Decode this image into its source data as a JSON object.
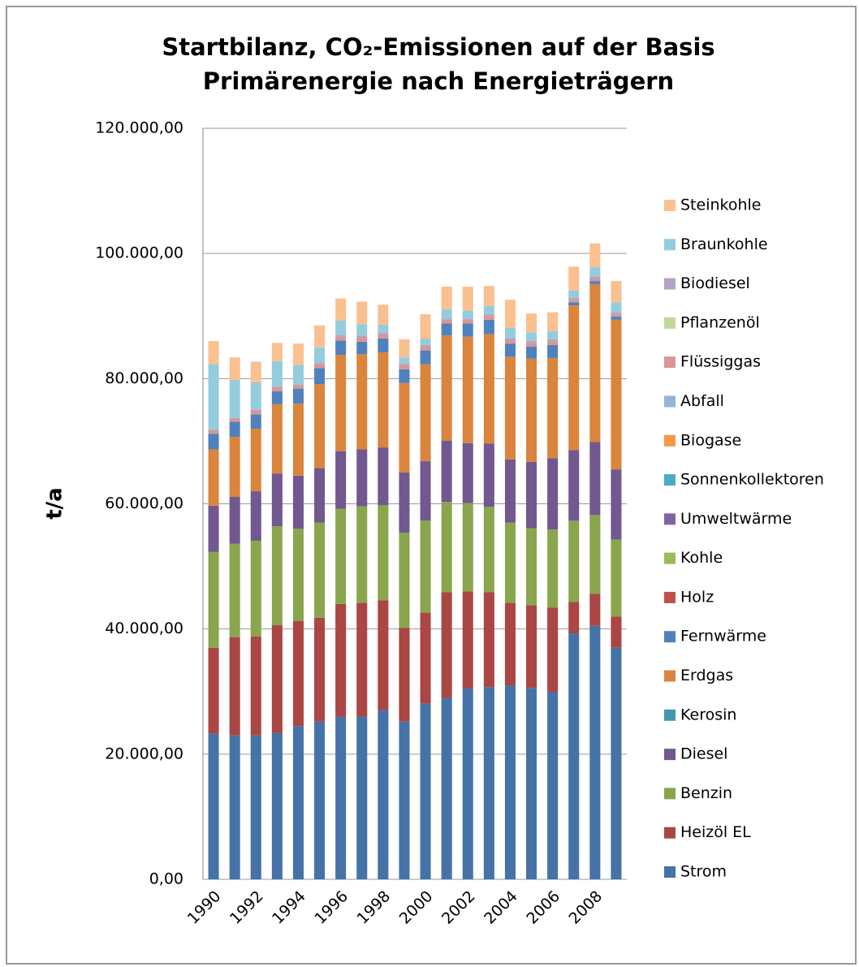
{
  "chart_data": {
    "type": "stacked_bar",
    "title": [
      "Startbilanz, CO₂-Emissionen auf der Basis",
      "Primärenergie nach Energieträgern"
    ],
    "y_label": "t/a",
    "categories": [
      "1990",
      null,
      "1992",
      null,
      "1994",
      null,
      "1996",
      null,
      "1998",
      null,
      "2000",
      null,
      "2002",
      null,
      "2004",
      null,
      "2006",
      null,
      "2008",
      null
    ],
    "ylim": [
      0,
      120000
    ],
    "yticks": [
      {
        "value": 0,
        "label": "0,00"
      },
      {
        "value": 20000,
        "label": "20.000,00"
      },
      {
        "value": 40000,
        "label": "40.000,00"
      },
      {
        "value": 60000,
        "label": "60.000,00"
      },
      {
        "value": 80000,
        "label": "80.000,00"
      },
      {
        "value": 100000,
        "label": "100.000,00"
      },
      {
        "value": 120000,
        "label": "120.000,00"
      }
    ],
    "grid": true,
    "legend": "right",
    "series": [
      {
        "name": "Strom",
        "color": "#4572A7",
        "values": [
          23300,
          23000,
          23000,
          23400,
          24500,
          25200,
          26000,
          26000,
          27000,
          25200,
          28100,
          29000,
          30500,
          30700,
          31000,
          30600,
          29900,
          39300,
          40500,
          37000
        ]
      },
      {
        "name": "Heizöl EL",
        "color": "#AA4643",
        "values": [
          13700,
          15700,
          15800,
          17200,
          16800,
          16600,
          18000,
          18200,
          17600,
          15000,
          14500,
          16900,
          15500,
          15200,
          13200,
          13200,
          13500,
          5000,
          5100,
          5000
        ]
      },
      {
        "name": "Benzin",
        "color": "#89A54E",
        "values": [
          15300,
          14900,
          15300,
          15800,
          14700,
          15200,
          15200,
          15400,
          15200,
          15200,
          14700,
          14400,
          14100,
          13600,
          12800,
          12300,
          12500,
          13000,
          12600,
          12300
        ]
      },
      {
        "name": "Diesel",
        "color": "#71588F",
        "values": [
          7400,
          7500,
          7900,
          8400,
          8500,
          8700,
          9200,
          9100,
          9200,
          9600,
          9500,
          9800,
          9600,
          10100,
          10100,
          10600,
          11400,
          11300,
          11700,
          11200
        ]
      },
      {
        "name": "Kerosin",
        "color": "#4198AF",
        "values": [
          0,
          0,
          0,
          0,
          0,
          0,
          0,
          0,
          0,
          0,
          0,
          0,
          0,
          0,
          0,
          0,
          0,
          0,
          0,
          0
        ]
      },
      {
        "name": "Erdgas",
        "color": "#DB843D",
        "values": [
          9000,
          9600,
          10000,
          11100,
          11500,
          13400,
          15400,
          15200,
          15200,
          14300,
          15500,
          16800,
          17000,
          17500,
          16400,
          16500,
          16000,
          23100,
          25200,
          23900
        ]
      },
      {
        "name": "Fernwärme",
        "color": "#4F81BD",
        "values": [
          2500,
          2400,
          2300,
          2100,
          2400,
          2600,
          2300,
          2000,
          2200,
          2200,
          2200,
          1900,
          2100,
          2300,
          2100,
          1900,
          2100,
          500,
          500,
          500
        ]
      },
      {
        "name": "Holz",
        "color": "#C0504D",
        "values": [
          0,
          0,
          0,
          0,
          0,
          0,
          0,
          0,
          0,
          0,
          0,
          0,
          0,
          0,
          0,
          0,
          0,
          0,
          0,
          0
        ]
      },
      {
        "name": "Kohle",
        "color": "#9BBB59",
        "values": [
          0,
          0,
          0,
          0,
          0,
          0,
          0,
          0,
          0,
          0,
          0,
          0,
          0,
          0,
          0,
          0,
          0,
          0,
          0,
          0
        ]
      },
      {
        "name": "Umweltwärme",
        "color": "#8064A2",
        "values": [
          0,
          0,
          0,
          0,
          0,
          0,
          0,
          0,
          0,
          0,
          0,
          0,
          0,
          0,
          0,
          0,
          0,
          0,
          0,
          0
        ]
      },
      {
        "name": "Sonnenkollektoren",
        "color": "#4BACC6",
        "values": [
          0,
          0,
          0,
          0,
          0,
          0,
          0,
          0,
          0,
          0,
          0,
          0,
          0,
          0,
          0,
          0,
          0,
          0,
          0,
          0
        ]
      },
      {
        "name": "Biogase",
        "color": "#F79646",
        "values": [
          0,
          0,
          0,
          0,
          0,
          0,
          0,
          0,
          0,
          0,
          0,
          0,
          0,
          0,
          0,
          0,
          0,
          0,
          0,
          0
        ]
      },
      {
        "name": "Abfall",
        "color": "#95B3D7",
        "values": [
          0,
          0,
          0,
          0,
          0,
          0,
          0,
          0,
          0,
          0,
          0,
          0,
          0,
          0,
          0,
          0,
          0,
          0,
          0,
          0
        ]
      },
      {
        "name": "Flüssiggas",
        "color": "#D99694",
        "values": [
          600,
          600,
          700,
          700,
          600,
          600,
          600,
          700,
          700,
          700,
          600,
          600,
          600,
          600,
          600,
          600,
          600,
          400,
          400,
          400
        ]
      },
      {
        "name": "Pflanzenöl",
        "color": "#C3D69B",
        "values": [
          0,
          0,
          0,
          0,
          0,
          0,
          0,
          0,
          0,
          0,
          0,
          0,
          0,
          0,
          0,
          0,
          0,
          0,
          0,
          0
        ]
      },
      {
        "name": "Biodiesel",
        "color": "#B3A2C7",
        "values": [
          0,
          0,
          0,
          0,
          0,
          200,
          300,
          300,
          200,
          200,
          300,
          200,
          200,
          300,
          300,
          300,
          300,
          300,
          300,
          300
        ]
      },
      {
        "name": "Braunkohle",
        "color": "#93CDDD",
        "values": [
          10500,
          6100,
          4400,
          4100,
          3200,
          2500,
          2300,
          1800,
          1300,
          1000,
          1000,
          1500,
          1300,
          1300,
          1600,
          1400,
          1300,
          1200,
          1500,
          1600
        ]
      },
      {
        "name": "Steinkohle",
        "color": "#FAC090",
        "values": [
          3700,
          3600,
          3300,
          2900,
          3400,
          3500,
          3500,
          3600,
          3200,
          2900,
          3900,
          3600,
          3800,
          3200,
          4500,
          3000,
          3000,
          3800,
          3800,
          3400
        ]
      }
    ]
  }
}
